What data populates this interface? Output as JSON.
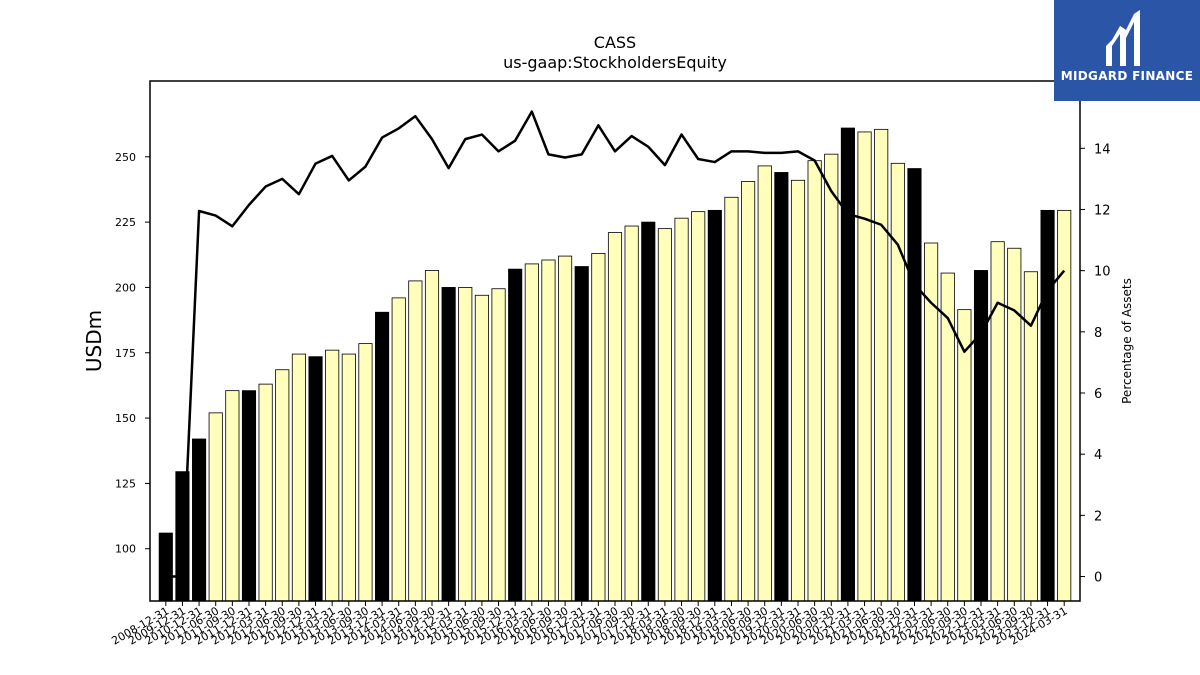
{
  "brand": {
    "name": "MIDGARD FINANCE",
    "logo_color": "#2b56a8"
  },
  "chart_data": {
    "type": "bar",
    "title": "CASS",
    "subtitle": "us-gaap:StockholdersEquity",
    "ylabel": "USDm",
    "y2label": "Percentage of Assets",
    "ylim": [
      80,
      279
    ],
    "y2lim": [
      -0.8,
      16.2
    ],
    "yticks": [
      100,
      125,
      150,
      175,
      200,
      225,
      250
    ],
    "y2ticks": [
      0,
      2,
      4,
      6,
      8,
      10,
      12,
      14
    ],
    "categories": [
      "2008-12-31",
      "2009-12-31",
      "2010-12-31",
      "2011-06-30",
      "2011-09-30",
      "2011-12-31",
      "2012-03-31",
      "2012-06-30",
      "2012-09-30",
      "2012-12-31",
      "2013-03-31",
      "2013-06-30",
      "2013-09-30",
      "2013-12-31",
      "2014-03-31",
      "2014-06-30",
      "2014-09-30",
      "2014-12-31",
      "2015-03-31",
      "2015-06-30",
      "2015-09-30",
      "2015-12-31",
      "2016-03-31",
      "2016-06-30",
      "2016-09-30",
      "2016-12-31",
      "2017-03-31",
      "2017-06-30",
      "2017-09-30",
      "2017-12-31",
      "2018-03-31",
      "2018-06-30",
      "2018-09-30",
      "2018-12-31",
      "2019-03-31",
      "2019-06-30",
      "2019-09-30",
      "2019-12-31",
      "2020-03-31",
      "2020-06-30",
      "2020-09-30",
      "2020-12-31",
      "2021-03-31",
      "2021-06-30",
      "2021-09-30",
      "2021-12-31",
      "2022-03-31",
      "2022-06-30",
      "2022-09-30",
      "2022-12-31",
      "2023-03-31",
      "2023-06-30",
      "2023-09-30",
      "2023-12-31",
      "2024-03-31"
    ],
    "xtick_labels": [
      "2008-12-31",
      "2009-12-31",
      "2010-12-31",
      "2011-06-30",
      "2011-09-30",
      "2011-12-31",
      "2012-03-31",
      "2012-06-30",
      "2012-09-30",
      "2012-12-31",
      "2013-03-31",
      "2013-06-30",
      "2013-09-30",
      "2013-12-31",
      "2014-03-31",
      "2014-06-30",
      "2014-09-30",
      "2014-12-31",
      "2015-03-31",
      "2015-06-30",
      "2015-09-30",
      "2015-12-31",
      "2016-03-31",
      "2016-06-30",
      "2016-09-30",
      "2016-12-31",
      "2017-03-31",
      "2017-06-30",
      "2017-09-30",
      "2017-12-31",
      "2018-03-31",
      "2018-06-30",
      "2018-09-30",
      "2018-12-31",
      "2019-03-31",
      "2019-06-30",
      "2019-09-30",
      "2019-12-31",
      "2020-03-31",
      "2020-06-30",
      "2020-09-30",
      "2020-12-31",
      "2021-03-31",
      "2021-06-30",
      "2021-09-30",
      "2021-12-31",
      "2022-03-31",
      "2022-06-30",
      "2022-09-30",
      "2022-12-31",
      "2023-03-31",
      "2023-06-30",
      "2023-09-30",
      "2023-12-31",
      "2024-03-31"
    ],
    "series": [
      {
        "type": "bar",
        "axis": "left",
        "values": [
          106,
          129.5,
          142,
          152,
          160.5,
          160.5,
          163,
          168.5,
          174.5,
          173.5,
          176,
          174.5,
          178.5,
          190.5,
          196,
          202.5,
          206.5,
          200,
          200,
          197,
          199.5,
          207,
          209,
          210.5,
          212,
          208,
          213,
          221,
          223.5,
          225,
          222.5,
          226.5,
          229,
          229.5,
          234.5,
          240.5,
          246.5,
          244,
          241,
          248.5,
          251,
          261,
          259.5,
          260.5,
          247.5,
          245.5,
          217,
          205.5,
          191.5,
          206.5,
          217.5,
          215,
          206,
          229.5,
          229.5
        ],
        "highlight": [
          true,
          true,
          true,
          false,
          false,
          true,
          false,
          false,
          false,
          true,
          false,
          false,
          false,
          true,
          false,
          false,
          false,
          true,
          false,
          false,
          false,
          true,
          false,
          false,
          false,
          true,
          false,
          false,
          false,
          true,
          false,
          false,
          false,
          true,
          false,
          false,
          false,
          true,
          false,
          false,
          false,
          true,
          false,
          false,
          false,
          true,
          false,
          false,
          false,
          true,
          false,
          false,
          false,
          true,
          false
        ],
        "colors": {
          "highlight": "#000000",
          "normal": "#ffffbb",
          "edge": "#000000"
        }
      },
      {
        "type": "line",
        "axis": "right",
        "color": "#000000",
        "values": [
          0.0,
          0.0,
          11.95,
          11.8,
          11.45,
          12.15,
          12.75,
          13.0,
          12.5,
          13.5,
          13.75,
          12.95,
          13.4,
          14.35,
          14.65,
          15.05,
          14.3,
          13.35,
          14.3,
          14.45,
          13.9,
          14.25,
          15.2,
          13.8,
          13.7,
          13.8,
          14.75,
          13.9,
          14.4,
          14.05,
          13.45,
          14.45,
          13.65,
          13.55,
          13.9,
          13.9,
          13.85,
          13.85,
          13.9,
          13.6,
          12.6,
          11.85,
          11.7,
          11.5,
          10.85,
          9.55,
          8.95,
          8.45,
          7.35,
          7.95,
          8.95,
          8.7,
          8.2,
          9.35,
          10.0
        ]
      }
    ],
    "grid": false,
    "legend": "none"
  }
}
